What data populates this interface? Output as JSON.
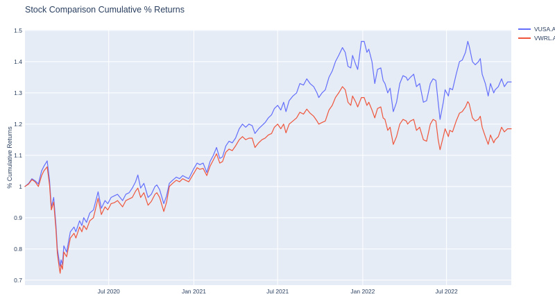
{
  "title": "Stock Comparison Cumulative % Returns",
  "colors": {
    "paper_bg": "#ffffff",
    "plot_bg": "#e5ecf6",
    "grid": "#ffffff",
    "text": "#2a3f5f",
    "series_blue": "#636efa",
    "series_red": "#ef553b"
  },
  "legend": {
    "items": [
      {
        "label": "VUSA.AS",
        "color": "#636efa"
      },
      {
        "label": "VWRL.AS",
        "color": "#ef553b"
      }
    ]
  },
  "chart_data": {
    "type": "line",
    "title": "Stock Comparison Cumulative % Returns",
    "xlabel": "",
    "ylabel": "% Cumulative Returns",
    "grid": true,
    "legend_position": "top-right-outside",
    "plot_bg": "#e5ecf6",
    "xlim": [
      "2020-01-02",
      "2022-11-18"
    ],
    "ylim": [
      0.684,
      1.502
    ],
    "x_ticks": [
      {
        "date": "2020-07-01",
        "label": "Jul 2020"
      },
      {
        "date": "2021-01-01",
        "label": "Jan 2021"
      },
      {
        "date": "2021-07-01",
        "label": "Jul 2021"
      },
      {
        "date": "2022-01-01",
        "label": "Jan 2022"
      },
      {
        "date": "2022-07-01",
        "label": "Jul 2022"
      }
    ],
    "y_ticks": [
      {
        "value": 0.7,
        "label": "0.7"
      },
      {
        "value": 0.8,
        "label": "0.8"
      },
      {
        "value": 0.9,
        "label": "0.9"
      },
      {
        "value": 1.0,
        "label": "1"
      },
      {
        "value": 1.1,
        "label": "1.1"
      },
      {
        "value": 1.2,
        "label": "1.2"
      },
      {
        "value": 1.3,
        "label": "1.3"
      },
      {
        "value": 1.4,
        "label": "1.4"
      },
      {
        "value": 1.5,
        "label": "1.5"
      }
    ],
    "dates": [
      "2020-01-02",
      "2020-01-10",
      "2020-01-17",
      "2020-01-24",
      "2020-01-31",
      "2020-02-07",
      "2020-02-12",
      "2020-02-19",
      "2020-02-24",
      "2020-02-28",
      "2020-03-04",
      "2020-03-06",
      "2020-03-09",
      "2020-03-12",
      "2020-03-16",
      "2020-03-18",
      "2020-03-20",
      "2020-03-23",
      "2020-03-26",
      "2020-04-01",
      "2020-04-09",
      "2020-04-17",
      "2020-04-21",
      "2020-04-29",
      "2020-05-04",
      "2020-05-08",
      "2020-05-14",
      "2020-05-21",
      "2020-05-29",
      "2020-06-08",
      "2020-06-15",
      "2020-06-23",
      "2020-06-29",
      "2020-07-06",
      "2020-07-13",
      "2020-07-20",
      "2020-07-31",
      "2020-08-07",
      "2020-08-14",
      "2020-08-21",
      "2020-08-28",
      "2020-09-02",
      "2020-09-08",
      "2020-09-15",
      "2020-09-24",
      "2020-10-01",
      "2020-10-09",
      "2020-10-13",
      "2020-10-19",
      "2020-10-28",
      "2020-11-03",
      "2020-11-09",
      "2020-11-16",
      "2020-11-24",
      "2020-12-01",
      "2020-12-08",
      "2020-12-14",
      "2020-12-21",
      "2020-12-31",
      "2021-01-08",
      "2021-01-14",
      "2021-01-21",
      "2021-01-29",
      "2021-02-05",
      "2021-02-12",
      "2021-02-19",
      "2021-02-26",
      "2021-03-04",
      "2021-03-11",
      "2021-03-18",
      "2021-03-25",
      "2021-04-01",
      "2021-04-09",
      "2021-04-16",
      "2021-04-23",
      "2021-04-30",
      "2021-05-07",
      "2021-05-13",
      "2021-05-21",
      "2021-05-28",
      "2021-06-04",
      "2021-06-11",
      "2021-06-18",
      "2021-06-24",
      "2021-07-01",
      "2021-07-08",
      "2021-07-14",
      "2021-07-19",
      "2021-07-26",
      "2021-08-03",
      "2021-08-11",
      "2021-08-18",
      "2021-08-26",
      "2021-09-02",
      "2021-09-09",
      "2021-09-17",
      "2021-09-24",
      "2021-09-28",
      "2021-10-05",
      "2021-10-12",
      "2021-10-20",
      "2021-10-27",
      "2021-11-03",
      "2021-11-10",
      "2021-11-18",
      "2021-11-24",
      "2021-11-30",
      "2021-12-06",
      "2021-12-10",
      "2021-12-17",
      "2021-12-21",
      "2021-12-29",
      "2022-01-04",
      "2022-01-10",
      "2022-01-14",
      "2022-01-21",
      "2022-01-27",
      "2022-02-02",
      "2022-02-09",
      "2022-02-14",
      "2022-02-18",
      "2022-02-24",
      "2022-03-01",
      "2022-03-08",
      "2022-03-15",
      "2022-03-22",
      "2022-03-29",
      "2022-04-05",
      "2022-04-08",
      "2022-04-14",
      "2022-04-21",
      "2022-04-27",
      "2022-05-04",
      "2022-05-12",
      "2022-05-19",
      "2022-05-27",
      "2022-06-02",
      "2022-06-08",
      "2022-06-13",
      "2022-06-17",
      "2022-06-24",
      "2022-06-28",
      "2022-07-05",
      "2022-07-08",
      "2022-07-14",
      "2022-07-22",
      "2022-07-29",
      "2022-08-04",
      "2022-08-11",
      "2022-08-16",
      "2022-08-19",
      "2022-08-26",
      "2022-09-01",
      "2022-09-08",
      "2022-09-12",
      "2022-09-16",
      "2022-09-23",
      "2022-09-29",
      "2022-10-04",
      "2022-10-11",
      "2022-10-14",
      "2022-10-21",
      "2022-10-28",
      "2022-11-03",
      "2022-11-10",
      "2022-11-18"
    ],
    "series": [
      {
        "name": "VUSA.AS",
        "color": "#636efa",
        "values": [
          1.0,
          1.01,
          1.025,
          1.018,
          1.008,
          1.05,
          1.065,
          1.082,
          1.02,
          0.935,
          0.965,
          0.93,
          0.875,
          0.8,
          0.76,
          0.745,
          0.765,
          0.75,
          0.81,
          0.79,
          0.855,
          0.87,
          0.855,
          0.89,
          0.875,
          0.9,
          0.885,
          0.915,
          0.925,
          0.983,
          0.93,
          0.955,
          0.945,
          0.965,
          0.97,
          0.975,
          0.955,
          0.975,
          0.98,
          0.995,
          1.015,
          1.037,
          0.995,
          1.01,
          0.965,
          0.975,
          1.0,
          1.005,
          0.99,
          0.945,
          0.97,
          1.01,
          1.02,
          1.03,
          1.025,
          1.035,
          1.03,
          1.025,
          1.055,
          1.075,
          1.07,
          1.075,
          1.045,
          1.08,
          1.1,
          1.125,
          1.09,
          1.095,
          1.13,
          1.145,
          1.14,
          1.155,
          1.185,
          1.2,
          1.19,
          1.2,
          1.195,
          1.17,
          1.185,
          1.195,
          1.205,
          1.22,
          1.23,
          1.25,
          1.26,
          1.245,
          1.27,
          1.24,
          1.275,
          1.29,
          1.3,
          1.33,
          1.325,
          1.345,
          1.33,
          1.32,
          1.3,
          1.285,
          1.3,
          1.31,
          1.35,
          1.37,
          1.4,
          1.42,
          1.445,
          1.43,
          1.385,
          1.38,
          1.42,
          1.39,
          1.375,
          1.465,
          1.465,
          1.43,
          1.44,
          1.4,
          1.33,
          1.375,
          1.38,
          1.34,
          1.33,
          1.3,
          1.315,
          1.24,
          1.27,
          1.33,
          1.355,
          1.35,
          1.34,
          1.35,
          1.36,
          1.32,
          1.33,
          1.27,
          1.275,
          1.33,
          1.345,
          1.34,
          1.27,
          1.215,
          1.27,
          1.31,
          1.29,
          1.315,
          1.31,
          1.36,
          1.4,
          1.405,
          1.43,
          1.465,
          1.45,
          1.4,
          1.39,
          1.4,
          1.41,
          1.36,
          1.33,
          1.29,
          1.33,
          1.3,
          1.31,
          1.32,
          1.345,
          1.32,
          1.335,
          1.335
        ]
      },
      {
        "name": "VWRL.AS",
        "color": "#ef553b",
        "values": [
          1.0,
          1.008,
          1.022,
          1.015,
          1.0,
          1.035,
          1.05,
          1.063,
          1.005,
          0.925,
          0.95,
          0.915,
          0.86,
          0.785,
          0.74,
          0.722,
          0.75,
          0.735,
          0.79,
          0.775,
          0.835,
          0.85,
          0.835,
          0.87,
          0.855,
          0.875,
          0.862,
          0.89,
          0.9,
          0.962,
          0.91,
          0.935,
          0.925,
          0.945,
          0.948,
          0.955,
          0.935,
          0.955,
          0.96,
          0.965,
          0.985,
          0.995,
          0.965,
          0.98,
          0.94,
          0.952,
          0.975,
          0.98,
          0.965,
          0.92,
          0.95,
          1.0,
          1.01,
          1.02,
          1.015,
          1.025,
          1.02,
          1.015,
          1.04,
          1.06,
          1.055,
          1.058,
          1.035,
          1.065,
          1.085,
          1.105,
          1.075,
          1.08,
          1.11,
          1.12,
          1.115,
          1.13,
          1.15,
          1.16,
          1.15,
          1.155,
          1.155,
          1.125,
          1.14,
          1.15,
          1.155,
          1.165,
          1.17,
          1.19,
          1.2,
          1.185,
          1.2,
          1.172,
          1.2,
          1.21,
          1.22,
          1.238,
          1.232,
          1.248,
          1.235,
          1.225,
          1.21,
          1.2,
          1.205,
          1.21,
          1.245,
          1.26,
          1.285,
          1.3,
          1.32,
          1.31,
          1.27,
          1.26,
          1.29,
          1.27,
          1.255,
          1.285,
          1.285,
          1.26,
          1.27,
          1.245,
          1.22,
          1.25,
          1.255,
          1.22,
          1.215,
          1.18,
          1.19,
          1.135,
          1.16,
          1.2,
          1.215,
          1.21,
          1.2,
          1.21,
          1.215,
          1.18,
          1.19,
          1.15,
          1.145,
          1.2,
          1.215,
          1.21,
          1.15,
          1.118,
          1.16,
          1.185,
          1.16,
          1.18,
          1.175,
          1.21,
          1.235,
          1.24,
          1.255,
          1.272,
          1.265,
          1.22,
          1.21,
          1.215,
          1.225,
          1.19,
          1.16,
          1.135,
          1.165,
          1.14,
          1.15,
          1.16,
          1.19,
          1.175,
          1.185,
          1.185
        ]
      }
    ]
  }
}
